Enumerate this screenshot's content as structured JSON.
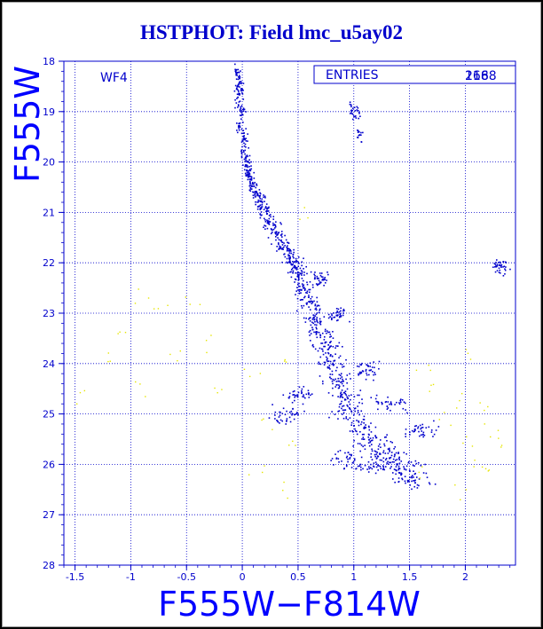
{
  "title": "HSTPHOT: Field lmc_u5ay02",
  "chart_data": {
    "type": "scatter",
    "xlabel": "F555W−F814W",
    "ylabel": "F555W",
    "xlim": [
      -1.6,
      2.45
    ],
    "ylim": [
      28,
      18
    ],
    "y_inverted": true,
    "grid": true,
    "grid_style": "dotted",
    "x_ticks": [
      -1.5,
      -1,
      -0.5,
      0,
      0.5,
      1,
      1.5,
      2
    ],
    "x_tick_labels": [
      "-1.5",
      "-1",
      "-0.5",
      "0",
      "0.5",
      "1",
      "1.5",
      "2"
    ],
    "y_ticks": [
      18,
      19,
      20,
      21,
      22,
      23,
      24,
      25,
      26,
      27,
      28
    ],
    "y_tick_labels": [
      "18",
      "19",
      "20",
      "21",
      "22",
      "23",
      "24",
      "25",
      "26",
      "27",
      "28"
    ],
    "panel_label": "WF4",
    "stats_box": {
      "label": "ENTRIES",
      "values": [
        "2168",
        "168"
      ]
    },
    "series": [
      {
        "color": "#0000cc",
        "description_points": [
          [
            -0.06,
            18.2
          ],
          [
            -0.03,
            18.3
          ],
          [
            -0.05,
            18.5
          ],
          [
            -0.02,
            18.6
          ],
          [
            -0.04,
            18.8
          ],
          [
            -0.01,
            19.0
          ],
          [
            -0.03,
            19.2
          ],
          [
            0.0,
            19.4
          ],
          [
            0.02,
            19.6
          ],
          [
            0.0,
            19.8
          ],
          [
            0.03,
            20.0
          ],
          [
            0.05,
            20.2
          ],
          [
            0.08,
            20.4
          ],
          [
            0.12,
            20.6
          ],
          [
            0.16,
            20.8
          ],
          [
            0.2,
            21.0
          ],
          [
            0.25,
            21.2
          ],
          [
            0.3,
            21.4
          ],
          [
            0.35,
            21.6
          ],
          [
            0.4,
            21.8
          ],
          [
            0.45,
            22.0
          ],
          [
            0.5,
            22.2
          ],
          [
            0.55,
            22.5
          ],
          [
            0.6,
            22.8
          ],
          [
            0.65,
            23.1
          ],
          [
            0.7,
            23.4
          ],
          [
            0.75,
            23.7
          ],
          [
            0.8,
            24.0
          ],
          [
            0.85,
            24.3
          ],
          [
            0.9,
            24.6
          ],
          [
            0.95,
            24.9
          ],
          [
            1.05,
            25.2
          ],
          [
            1.15,
            25.5
          ],
          [
            1.25,
            25.7
          ],
          [
            1.35,
            25.9
          ],
          [
            1.45,
            26.1
          ],
          [
            1.52,
            26.3
          ],
          [
            0.98,
            19.0
          ],
          [
            1.02,
            19.05
          ],
          [
            1.04,
            19.5
          ],
          [
            2.3,
            22.1
          ],
          [
            0.7,
            22.3
          ],
          [
            0.85,
            23.0
          ],
          [
            1.1,
            24.1
          ],
          [
            1.3,
            24.8
          ],
          [
            0.5,
            24.6
          ],
          [
            0.4,
            25.0
          ],
          [
            0.95,
            25.9
          ],
          [
            1.2,
            26.0
          ],
          [
            1.6,
            25.3
          ]
        ]
      },
      {
        "color": "#e6e600",
        "description_points": [
          [
            -1.45,
            24.6
          ],
          [
            -1.1,
            23.4
          ],
          [
            -0.9,
            22.6
          ],
          [
            -0.7,
            22.9
          ],
          [
            -0.6,
            23.8
          ],
          [
            -0.45,
            22.8
          ],
          [
            -0.3,
            23.6
          ],
          [
            -0.2,
            24.5
          ],
          [
            0.1,
            24.2
          ],
          [
            0.2,
            25.3
          ],
          [
            0.35,
            23.9
          ],
          [
            0.45,
            25.5
          ],
          [
            0.55,
            21.0
          ],
          [
            1.6,
            24.1
          ],
          [
            1.7,
            24.5
          ],
          [
            1.8,
            25.1
          ],
          [
            1.9,
            24.7
          ],
          [
            2.0,
            25.6
          ],
          [
            2.1,
            25.9
          ],
          [
            2.2,
            24.8
          ],
          [
            2.25,
            25.3
          ],
          [
            2.3,
            25.6
          ],
          [
            1.95,
            26.6
          ],
          [
            1.6,
            26.2
          ],
          [
            0.35,
            26.5
          ],
          [
            -0.95,
            24.4
          ],
          [
            -1.2,
            23.9
          ],
          [
            0.1,
            26.2
          ],
          [
            2.2,
            26.1
          ],
          [
            2.05,
            23.8
          ]
        ]
      }
    ]
  }
}
